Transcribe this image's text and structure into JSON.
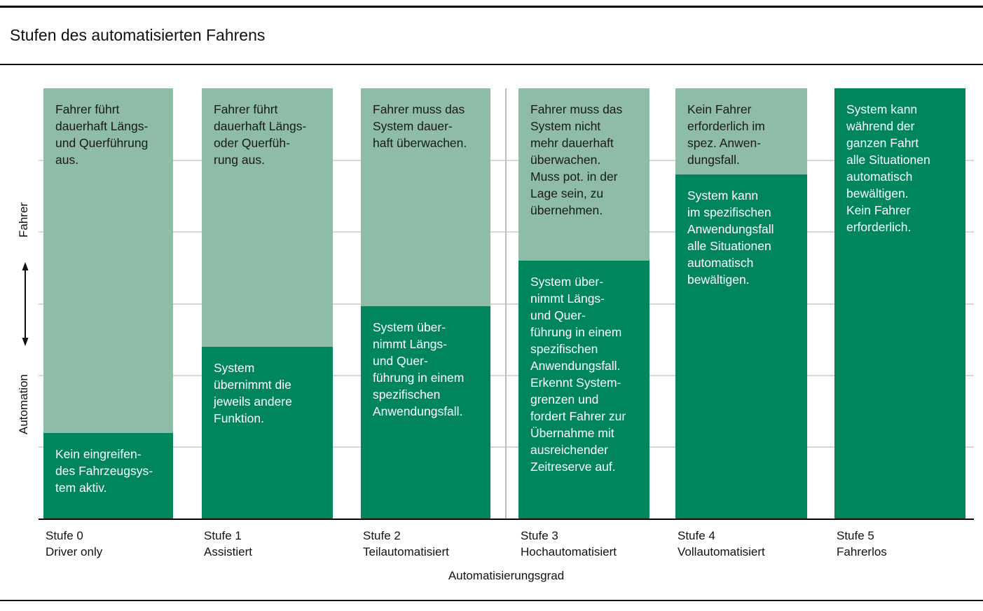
{
  "title": "Stufen des automatisierten Fahrens",
  "axis": {
    "y_top_label": "Fahrer",
    "y_bottom_label": "Automation",
    "x_label": "Automatisierungsgrad"
  },
  "colors": {
    "fahrer_light_green": "#8FBCA6",
    "automation_dark_green": "#00855C",
    "gridline_gray": "#D7D7D7",
    "divider_gray": "#BBBBBB",
    "text_dark": "#1A1A1A",
    "text_on_dark": "#FFFFFF"
  },
  "columns": [
    {
      "stufe": "Stufe 0",
      "name": "Driver only",
      "fahrer_text": "Fahrer führt\ndauerhaft Längs-\nund Querführung\naus.",
      "system_text": "Kein eingreifen-\ndes Fahrzeugsys-\ntem aktiv."
    },
    {
      "stufe": "Stufe 1",
      "name": "Assistiert",
      "fahrer_text": "Fahrer führt\ndauerhaft Längs-\noder Querfüh-\nrung aus.",
      "system_text": "System\nübernimmt die\njeweils andere\nFunktion."
    },
    {
      "stufe": "Stufe 2",
      "name": "Teilautomatisiert",
      "fahrer_text": "Fahrer muss das\nSystem dauer-\nhaft überwachen.",
      "system_text": "System über-\nnimmt Längs-\nund Quer-\nführung in einem\nspezifischen\nAnwendungsfall."
    },
    {
      "stufe": "Stufe 3",
      "name": "Hochautomatisiert",
      "fahrer_text": "Fahrer muss das\nSystem nicht\nmehr dauerhaft\nüberwachen.\nMuss pot. in der\nLage sein, zu\nübernehmen.",
      "system_text": "System über-\nnimmt Längs-\nund Quer-\nführung in einem\nspezifischen\nAnwendungsfall.\nErkennt System-\ngrenzen und\nfordert Fahrer zur\nÜbernahme mit\nausreichender\nZeitreserve auf."
    },
    {
      "stufe": "Stufe 4",
      "name": "Vollautomatisiert",
      "fahrer_text": "Kein Fahrer\nerforderlich im\nspez. Anwen-\ndungsfall.",
      "system_text": "System kann\nim spezifischen\nAnwendungsfall\nalle Situationen\nautomatisch\nbewältigen."
    },
    {
      "stufe": "Stufe 5",
      "name": "Fahrerlos",
      "fahrer_text": "",
      "system_text": "System kann\nwährend der\nganzen Fahrt\nalle Situationen\nautomatisch\nbewältigen.\nKein Fahrer\nerforderlich."
    }
  ],
  "chart_data": {
    "type": "bar",
    "stacked": true,
    "orientation": "vertical",
    "title": "Stufen des automatisierten Fahrens",
    "xlabel": "Automatisierungsgrad",
    "categories": [
      "Stufe 0 Driver only",
      "Stufe 1 Assistiert",
      "Stufe 2 Teilautomatisiert",
      "Stufe 3 Hochautomatisiert",
      "Stufe 4 Vollautomatisiert",
      "Stufe 5 Fahrerlos"
    ],
    "series": [
      {
        "name": "Fahrer",
        "values": [
          80,
          60,
          50.5,
          40,
          20,
          0
        ],
        "color": "#8FBCA6"
      },
      {
        "name": "Automation",
        "values": [
          20,
          40,
          49.5,
          60,
          80,
          100
        ],
        "color": "#00855C"
      }
    ],
    "unit": "percent of bar height (share of driving task, estimated from pixels)",
    "ylim": [
      0,
      100
    ],
    "grid": "5 light-gray horizontal gridlines dividing plot into 6 equal rows; 1 gray vertical divider between Stufe 2 and Stufe 3",
    "legend_position": "none (roles labeled on y-axis: Fahrer top, Automation bottom)"
  }
}
